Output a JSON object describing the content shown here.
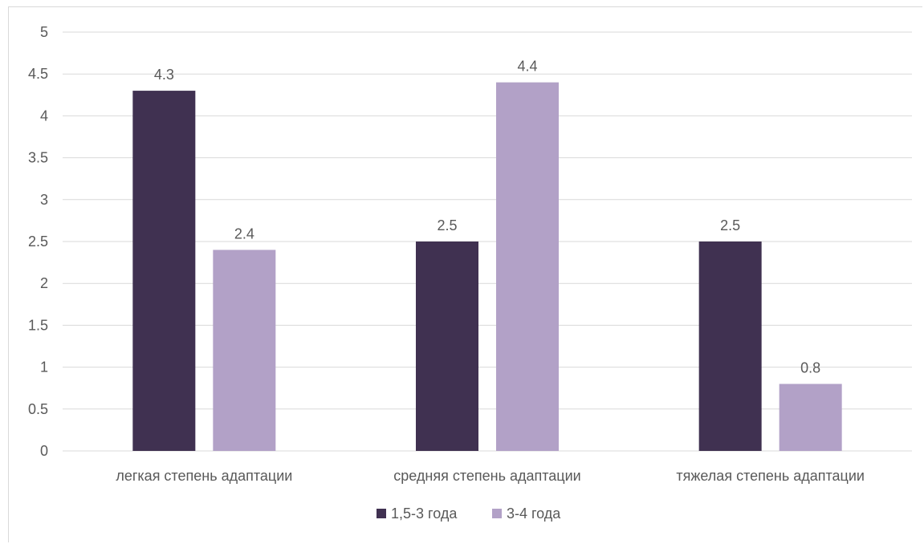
{
  "chart_data": {
    "type": "bar",
    "categories": [
      "легкая степень адаптации",
      "средняя степень адаптации",
      "тяжелая степень адаптации"
    ],
    "series": [
      {
        "name": "1,5-3 года",
        "values": [
          4.3,
          2.5,
          2.5
        ],
        "color": "#403151",
        "value_labels": [
          "4.3",
          "2.5",
          "2.5"
        ]
      },
      {
        "name": "3-4 года",
        "values": [
          2.4,
          4.4,
          0.8
        ],
        "color": "#b2a1c7",
        "value_labels": [
          "2.4",
          "4.4",
          "0.8"
        ]
      }
    ],
    "ylim": [
      0,
      5
    ],
    "yticks": [
      "0",
      "0.5",
      "1",
      "1.5",
      "2",
      "2.5",
      "3",
      "3.5",
      "4",
      "4.5",
      "5"
    ],
    "grid": true,
    "gridline_color": "#d9d9d9",
    "legend_position": "bottom"
  }
}
